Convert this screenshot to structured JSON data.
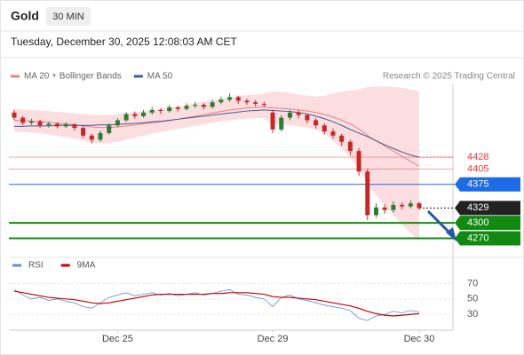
{
  "chart_data": {
    "type": "candlestick",
    "title": "Gold",
    "timeframe": "30 MIN",
    "subtitle": "Tuesday, December 30, 2025 12:08:03 AM CET",
    "source": "Research © 2025 Trading Central",
    "categories": [
      null,
      null,
      null,
      null,
      null,
      null,
      null,
      null,
      null,
      null,
      null,
      null,
      "Dec 25",
      null,
      null,
      null,
      null,
      null,
      null,
      null,
      null,
      null,
      null,
      null,
      null,
      null,
      null,
      null,
      null,
      null,
      "Dec 29",
      null,
      null,
      null,
      null,
      null,
      null,
      null,
      null,
      null,
      null,
      null,
      null,
      null,
      null,
      null,
      null,
      "Dec 30"
    ],
    "up_color": "#2e7d32",
    "down_color": "#c62828",
    "candles": [
      [
        4515,
        4520,
        4500,
        4505
      ],
      [
        4505,
        4508,
        4490,
        4495
      ],
      [
        4495,
        4503,
        4491,
        4498
      ],
      [
        4498,
        4501,
        4485,
        4490
      ],
      [
        4490,
        4497,
        4486,
        4493
      ],
      [
        4493,
        4496,
        4484,
        4488
      ],
      [
        4488,
        4496,
        4485,
        4492
      ],
      [
        4492,
        4494,
        4480,
        4485
      ],
      [
        4485,
        4488,
        4465,
        4470
      ],
      [
        4470,
        4474,
        4455,
        4462
      ],
      [
        4462,
        4480,
        4458,
        4475
      ],
      [
        4475,
        4494,
        4472,
        4490
      ],
      [
        4490,
        4504,
        4486,
        4500
      ],
      [
        4500,
        4516,
        4497,
        4512
      ],
      [
        4512,
        4517,
        4503,
        4508
      ],
      [
        4508,
        4520,
        4505,
        4515
      ],
      [
        4515,
        4526,
        4511,
        4520
      ],
      [
        4520,
        4524,
        4512,
        4518
      ],
      [
        4518,
        4530,
        4515,
        4525
      ],
      [
        4525,
        4528,
        4517,
        4522
      ],
      [
        4522,
        4533,
        4519,
        4528
      ],
      [
        4528,
        4536,
        4524,
        4530
      ],
      [
        4530,
        4533,
        4521,
        4526
      ],
      [
        4526,
        4540,
        4523,
        4535
      ],
      [
        4535,
        4546,
        4531,
        4540
      ],
      [
        4540,
        4552,
        4536,
        4545
      ],
      [
        4545,
        4548,
        4532,
        4538
      ],
      [
        4538,
        4542,
        4530,
        4535
      ],
      [
        4535,
        4539,
        4527,
        4532
      ],
      [
        4532,
        4536,
        4525,
        4530
      ],
      [
        4515,
        4520,
        4475,
        4482
      ],
      [
        4482,
        4510,
        4478,
        4505
      ],
      [
        4505,
        4520,
        4500,
        4515
      ],
      [
        4515,
        4519,
        4504,
        4510
      ],
      [
        4510,
        4513,
        4494,
        4500
      ],
      [
        4500,
        4504,
        4484,
        4490
      ],
      [
        4490,
        4494,
        4472,
        4478
      ],
      [
        4478,
        4484,
        4464,
        4470
      ],
      [
        4470,
        4474,
        4450,
        4458
      ],
      [
        4458,
        4462,
        4432,
        4440
      ],
      [
        4440,
        4445,
        4392,
        4400
      ],
      [
        4400,
        4405,
        4305,
        4315
      ],
      [
        4315,
        4338,
        4310,
        4330
      ],
      [
        4330,
        4336,
        4318,
        4325
      ],
      [
        4325,
        4342,
        4320,
        4335
      ],
      [
        4335,
        4340,
        4326,
        4332
      ],
      [
        4332,
        4344,
        4328,
        4338
      ],
      [
        4338,
        4341,
        4325,
        4329
      ]
    ],
    "ylim": [
      4250,
      4570
    ],
    "series": [
      {
        "name": "MA 20 + Bollinger Bands",
        "color": "#e88080",
        "band_color": "#fbd5d8",
        "values": [
          4500,
          4499,
          4498,
          4497,
          4496,
          4494,
          4493,
          4491,
          4489,
          4487,
          4486,
          4486,
          4487,
          4489,
          4491,
          4493,
          4495,
          4497,
          4499,
          4502,
          4505,
          4508,
          4511,
          4514,
          4517,
          4520,
          4522,
          4524,
          4525,
          4526,
          4524,
          4523,
          4522,
          4520,
          4518,
          4515,
          4511,
          4506,
          4500,
          4493,
          4483,
          4470,
          4460,
          4450,
          4440,
          4430,
          4420,
          4410
        ],
        "upper": [
          4522,
          4521,
          4520,
          4519,
          4518,
          4516,
          4515,
          4513,
          4512,
          4511,
          4510,
          4510,
          4512,
          4514,
          4516,
          4518,
          4520,
          4522,
          4524,
          4527,
          4530,
          4533,
          4536,
          4539,
          4542,
          4545,
          4547,
          4549,
          4550,
          4552,
          4556,
          4555,
          4553,
          4550,
          4548,
          4546,
          4548,
          4552,
          4556,
          4558,
          4560,
          4565,
          4566,
          4566,
          4565,
          4563,
          4560,
          4556
        ],
        "lower": [
          4478,
          4477,
          4476,
          4475,
          4472,
          4469,
          4467,
          4464,
          4460,
          4457,
          4455,
          4455,
          4458,
          4462,
          4466,
          4470,
          4474,
          4477,
          4480,
          4483,
          4486,
          4489,
          4492,
          4495,
          4498,
          4500,
          4502,
          4503,
          4504,
          4504,
          4492,
          4491,
          4490,
          4488,
          4486,
          4482,
          4474,
          4460,
          4444,
          4428,
          4406,
          4375,
          4354,
          4334,
          4315,
          4297,
          4280,
          4264
        ]
      },
      {
        "name": "MA 50",
        "color": "#3a5f9a",
        "values": [
          4488,
          4488,
          4489,
          4489,
          4489,
          4490,
          4490,
          4490,
          4490,
          4490,
          4491,
          4491,
          4492,
          4493,
          4494,
          4495,
          4497,
          4498,
          4500,
          4502,
          4504,
          4506,
          4508,
          4510,
          4512,
          4514,
          4516,
          4518,
          4519,
          4520,
          4519,
          4518,
          4517,
          4515,
          4512,
          4508,
          4503,
          4497,
          4490,
          4482,
          4475,
          4468,
          4460,
          4452,
          4445,
          4438,
          4432,
          4428
        ]
      }
    ],
    "levels": [
      {
        "value": 4428,
        "color": "#e53935",
        "box": false
      },
      {
        "value": 4405,
        "color": "#e53935",
        "box": false
      },
      {
        "value": 4375,
        "color": "#1e6be6",
        "box": true
      },
      {
        "value": 4329,
        "color": "#222222",
        "box": true
      },
      {
        "value": 4300,
        "color": "#128a12",
        "box": true
      },
      {
        "value": 4270,
        "color": "#128a12",
        "box": true
      }
    ],
    "indicator": {
      "ylim": [
        20,
        75
      ],
      "yticks": [
        30,
        50,
        70
      ],
      "series": [
        {
          "name": "RSI",
          "color": "#5b8dd9",
          "values": [
            62,
            55,
            50,
            52,
            48,
            50,
            47,
            45,
            40,
            38,
            45,
            52,
            55,
            58,
            54,
            56,
            58,
            55,
            57,
            54,
            56,
            58,
            55,
            57,
            60,
            62,
            56,
            55,
            52,
            50,
            40,
            52,
            55,
            50,
            48,
            45,
            42,
            40,
            38,
            35,
            25,
            22,
            28,
            30,
            34,
            32,
            35,
            33
          ]
        },
        {
          "name": "9MA",
          "color": "#cc0000",
          "values": [
            60,
            58,
            56,
            54,
            52,
            51,
            50,
            49,
            47,
            45,
            44,
            45,
            47,
            49,
            51,
            53,
            55,
            56,
            56,
            56,
            56,
            56,
            56,
            57,
            57,
            58,
            58,
            58,
            57,
            56,
            53,
            52,
            52,
            51,
            50,
            49,
            47,
            45,
            43,
            41,
            38,
            34,
            31,
            29,
            28,
            29,
            30,
            31
          ]
        }
      ]
    }
  }
}
